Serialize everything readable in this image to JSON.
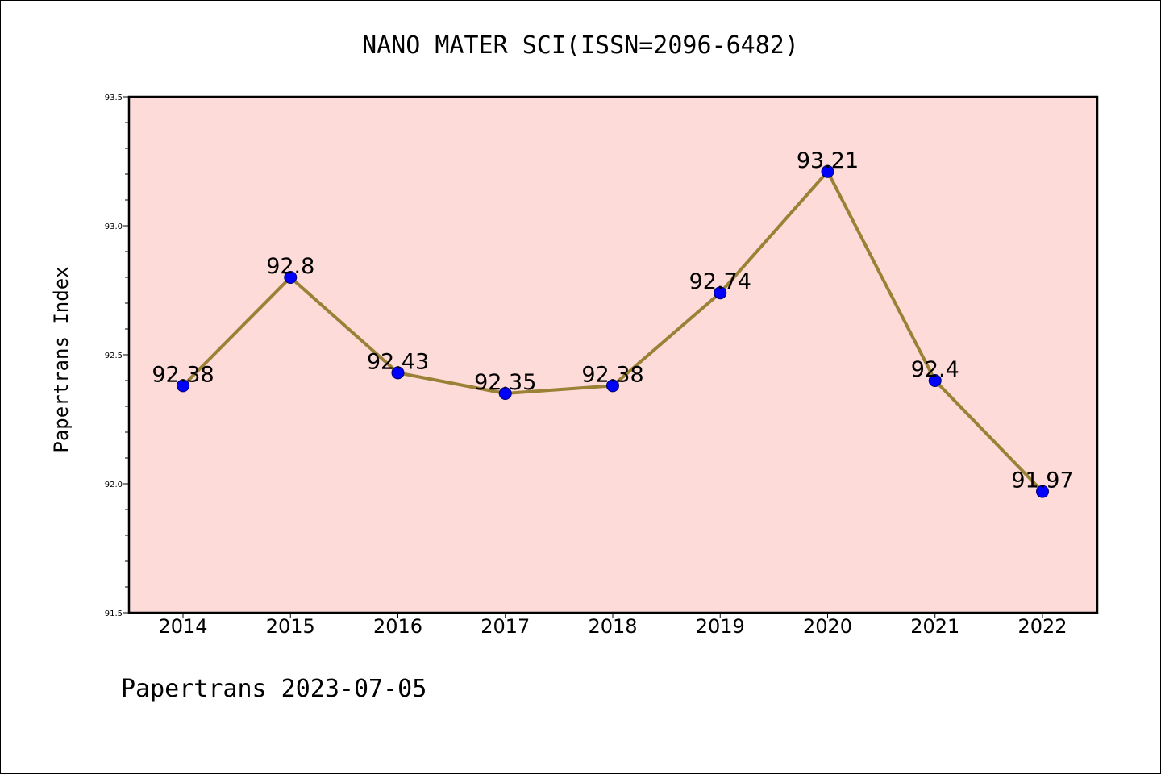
{
  "chart_data": {
    "type": "line",
    "title": "NANO MATER SCI(ISSN=2096-6482)",
    "ylabel": "Papertrans Index",
    "xlabel": "",
    "categories": [
      "2014",
      "2015",
      "2016",
      "2017",
      "2018",
      "2019",
      "2020",
      "2021",
      "2022"
    ],
    "values": [
      92.38,
      92.8,
      92.43,
      92.35,
      92.38,
      92.74,
      93.21,
      92.4,
      91.97
    ],
    "data_labels": [
      "92.38",
      "92.8",
      "92.43",
      "92.35",
      "92.38",
      "92.74",
      "93.21",
      "92.4",
      "91.97"
    ],
    "ylim": [
      91.5,
      93.5
    ],
    "yticks": [
      "91.5",
      "92.0",
      "92.5",
      "93.0",
      "93.5"
    ],
    "grid": false,
    "colors": {
      "plot_background": "#fddbd8",
      "line": "#9a8136",
      "marker": "#0000ff"
    }
  },
  "footer": "Papertrans 2023-07-05"
}
